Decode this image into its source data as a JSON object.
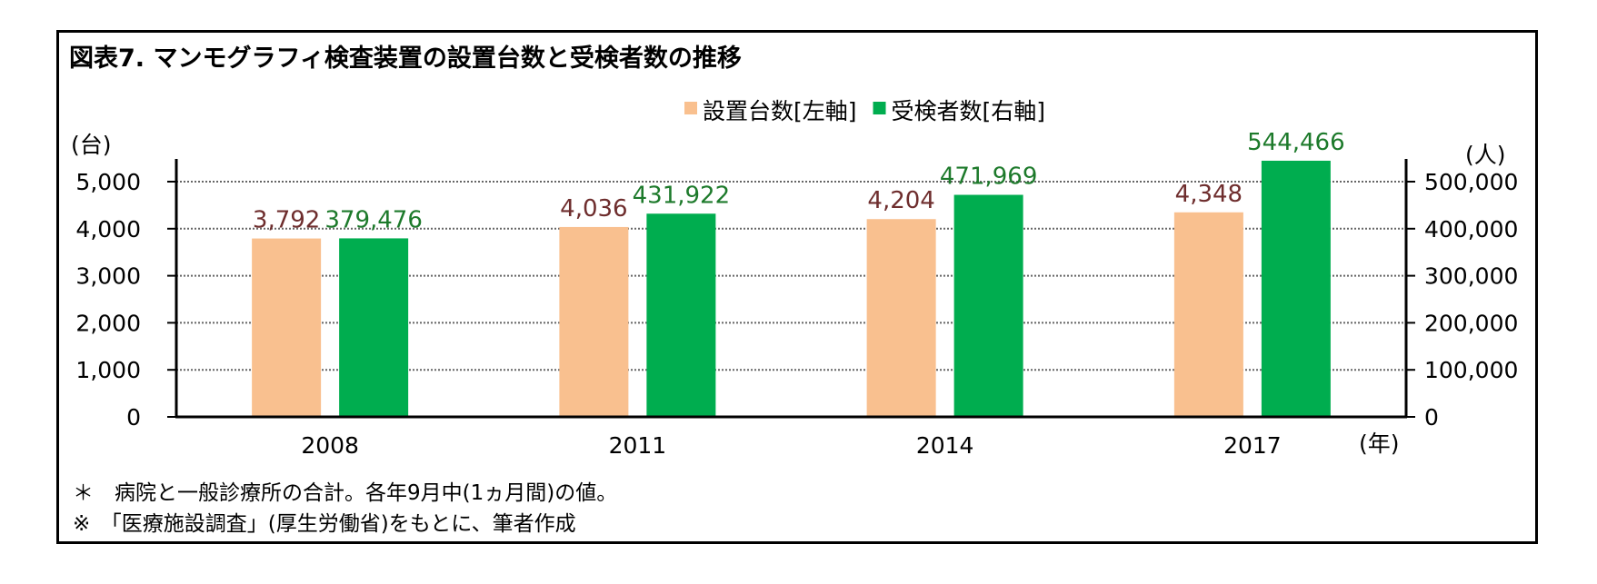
{
  "title": "図表7. マンモグラフィ検査装置の設置台数と受検者数の推移",
  "chart_data": {
    "type": "bar",
    "categories": [
      "2008",
      "2011",
      "2014",
      "2017"
    ],
    "series": [
      {
        "name": "設置台数[左軸]",
        "axis": "left",
        "color": "#f9c08f",
        "values": [
          3792,
          4036,
          4204,
          4348
        ],
        "labels": [
          "3,792",
          "4,036",
          "4,204",
          "4,348"
        ],
        "label_color": "#6e2d2d"
      },
      {
        "name": "受検者数[右軸]",
        "axis": "right",
        "color": "#00ad4f",
        "values": [
          379476,
          431922,
          471969,
          544466
        ],
        "labels": [
          "379,476",
          "431,922",
          "471,969",
          "544,466"
        ],
        "label_color": "#1d7a2b"
      }
    ],
    "y_left": {
      "unit_label": "(台)",
      "range": [
        0,
        5000
      ],
      "ticks": [
        "0",
        "1,000",
        "2,000",
        "3,000",
        "4,000",
        "5,000"
      ]
    },
    "y_right": {
      "unit_label": "(人)",
      "range": [
        0,
        500000
      ],
      "ticks": [
        "0",
        "100,000",
        "200,000",
        "300,000",
        "400,000",
        "500,000"
      ]
    },
    "x_unit_label": "(年)",
    "legend_position": "top-right",
    "grid": "dotted-horizontal"
  },
  "notes": [
    "＊　病院と一般診療所の合計。各年9月中(1ヵ月間)の値。",
    "※　「医療施設調査」(厚生労働省)をもとに、筆者作成"
  ]
}
